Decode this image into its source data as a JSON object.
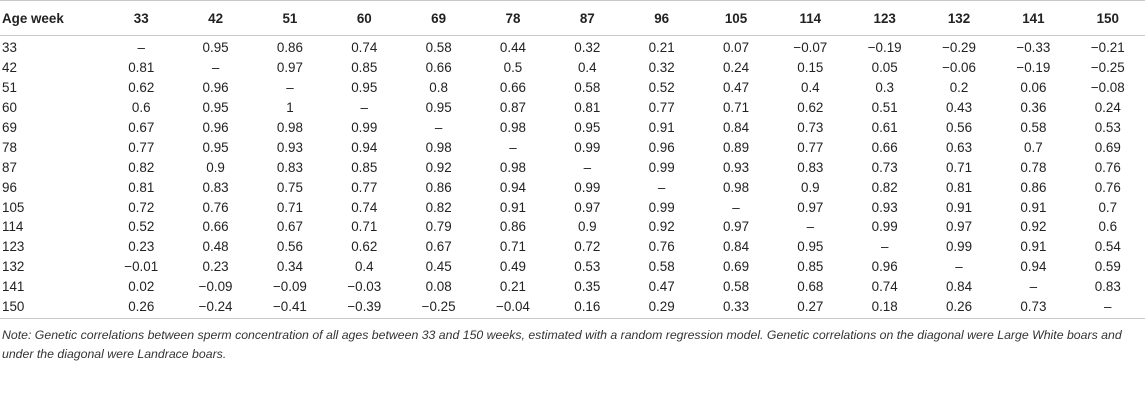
{
  "table": {
    "header": [
      "Age week",
      "33",
      "42",
      "51",
      "60",
      "69",
      "78",
      "87",
      "96",
      "105",
      "114",
      "123",
      "132",
      "141",
      "150"
    ],
    "rows": [
      [
        "33",
        "–",
        "0.95",
        "0.86",
        "0.74",
        "0.58",
        "0.44",
        "0.32",
        "0.21",
        "0.07",
        "−0.07",
        "−0.19",
        "−0.29",
        "−0.33",
        "−0.21"
      ],
      [
        "42",
        "0.81",
        "–",
        "0.97",
        "0.85",
        "0.66",
        "0.5",
        "0.4",
        "0.32",
        "0.24",
        "0.15",
        "0.05",
        "−0.06",
        "−0.19",
        "−0.25"
      ],
      [
        "51",
        "0.62",
        "0.96",
        "–",
        "0.95",
        "0.8",
        "0.66",
        "0.58",
        "0.52",
        "0.47",
        "0.4",
        "0.3",
        "0.2",
        "0.06",
        "−0.08"
      ],
      [
        "60",
        "0.6",
        "0.95",
        "1",
        "–",
        "0.95",
        "0.87",
        "0.81",
        "0.77",
        "0.71",
        "0.62",
        "0.51",
        "0.43",
        "0.36",
        "0.24"
      ],
      [
        "69",
        "0.67",
        "0.96",
        "0.98",
        "0.99",
        "–",
        "0.98",
        "0.95",
        "0.91",
        "0.84",
        "0.73",
        "0.61",
        "0.56",
        "0.58",
        "0.53"
      ],
      [
        "78",
        "0.77",
        "0.95",
        "0.93",
        "0.94",
        "0.98",
        "–",
        "0.99",
        "0.96",
        "0.89",
        "0.77",
        "0.66",
        "0.63",
        "0.7",
        "0.69"
      ],
      [
        "87",
        "0.82",
        "0.9",
        "0.83",
        "0.85",
        "0.92",
        "0.98",
        "–",
        "0.99",
        "0.93",
        "0.83",
        "0.73",
        "0.71",
        "0.78",
        "0.76"
      ],
      [
        "96",
        "0.81",
        "0.83",
        "0.75",
        "0.77",
        "0.86",
        "0.94",
        "0.99",
        "–",
        "0.98",
        "0.9",
        "0.82",
        "0.81",
        "0.86",
        "0.76"
      ],
      [
        "105",
        "0.72",
        "0.76",
        "0.71",
        "0.74",
        "0.82",
        "0.91",
        "0.97",
        "0.99",
        "–",
        "0.97",
        "0.93",
        "0.91",
        "0.91",
        "0.7"
      ],
      [
        "114",
        "0.52",
        "0.66",
        "0.67",
        "0.71",
        "0.79",
        "0.86",
        "0.9",
        "0.92",
        "0.97",
        "–",
        "0.99",
        "0.97",
        "0.92",
        "0.6"
      ],
      [
        "123",
        "0.23",
        "0.48",
        "0.56",
        "0.62",
        "0.67",
        "0.71",
        "0.72",
        "0.76",
        "0.84",
        "0.95",
        "–",
        "0.99",
        "0.91",
        "0.54"
      ],
      [
        "132",
        "−0.01",
        "0.23",
        "0.34",
        "0.4",
        "0.45",
        "0.49",
        "0.53",
        "0.58",
        "0.69",
        "0.85",
        "0.96",
        "–",
        "0.94",
        "0.59"
      ],
      [
        "141",
        "0.02",
        "−0.09",
        "−0.09",
        "−0.03",
        "0.08",
        "0.21",
        "0.35",
        "0.47",
        "0.58",
        "0.68",
        "0.74",
        "0.84",
        "–",
        "0.83"
      ],
      [
        "150",
        "0.26",
        "−0.24",
        "−0.41",
        "−0.39",
        "−0.25",
        "−0.04",
        "0.16",
        "0.29",
        "0.33",
        "0.27",
        "0.18",
        "0.26",
        "0.73",
        "–"
      ]
    ]
  },
  "note": "Note: Genetic correlations between sperm concentration of all ages between 33 and 150 weeks, estimated with a random regression model. Genetic correlations on the diagonal were Large White boars and under the diagonal were Landrace boars."
}
